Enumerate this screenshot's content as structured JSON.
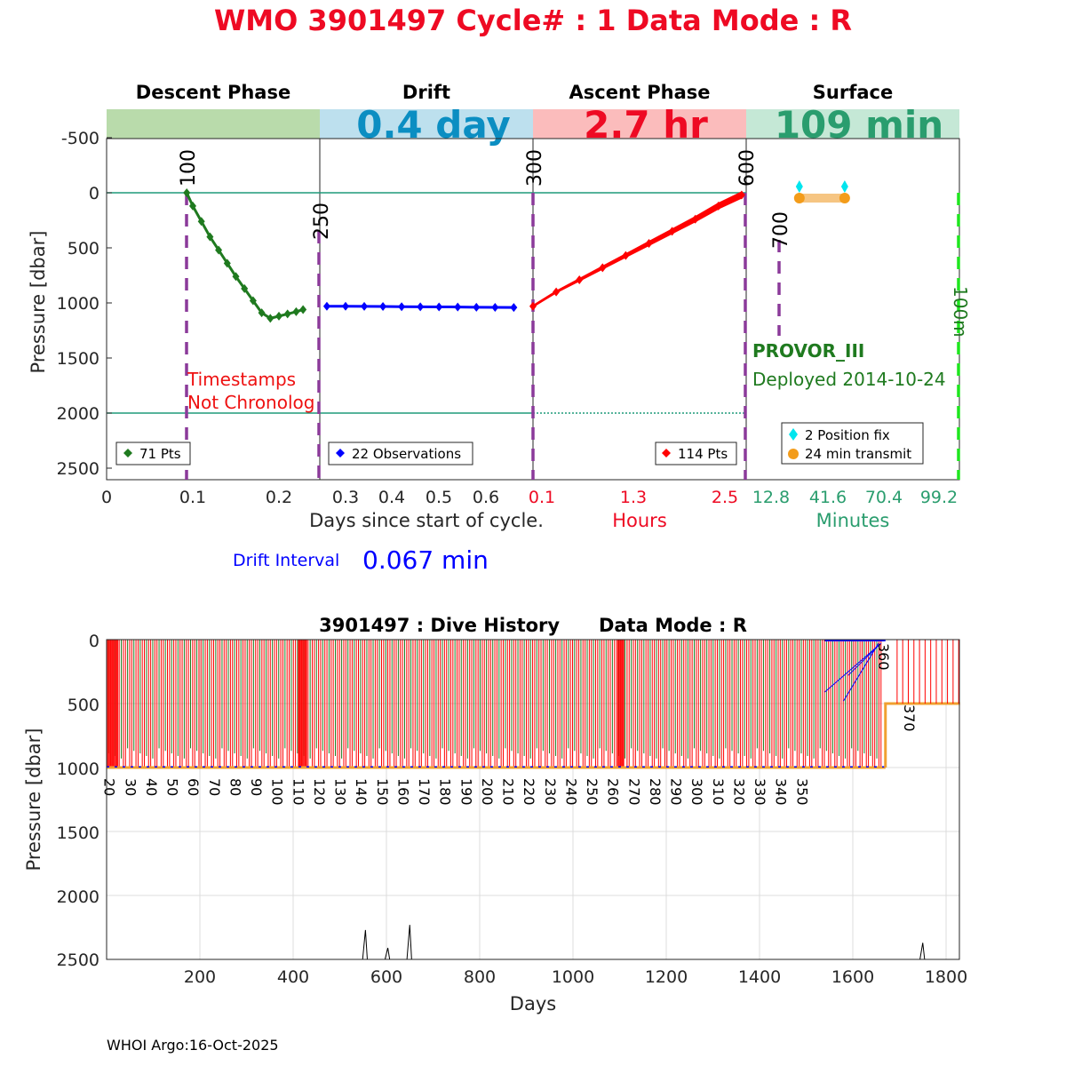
{
  "title": "WMO 3901497   Cycle# : 1   Data Mode : R",
  "phases": [
    {
      "label": "Descent Phase",
      "value": "",
      "color": "#b9dbab",
      "value_color": "#000000"
    },
    {
      "label": "Drift",
      "value": "0.4 day",
      "color": "#bde0ee",
      "value_color": "#0b8ec2"
    },
    {
      "label": "Ascent Phase",
      "value": "2.7 hr",
      "color": "#fbbcbc",
      "value_color": "#ee0a23"
    },
    {
      "label": "Surface",
      "value": "109 min",
      "color": "#c5e8d6",
      "value_color": "#2a9d6e"
    }
  ],
  "top_axes": {
    "ylabel": "Pressure [dbar]",
    "yticks": [
      "-500",
      "0",
      "500",
      "1000",
      "1500",
      "2000",
      "2500"
    ],
    "descent_drift_xticks": [
      "0",
      "0.1",
      "0.2",
      "0.3",
      "0.4",
      "0.5",
      "0.6"
    ],
    "xlabel_days": "Days since start of cycle.",
    "ascent_xticks": [
      "0.1",
      "1.3",
      "2.5"
    ],
    "xlabel_hours": "Hours",
    "surface_xticks": [
      "12.8",
      "41.6",
      "70.4",
      "99.2"
    ],
    "xlabel_minutes": "Minutes",
    "pump_labels": [
      "100",
      "250",
      "300",
      "600",
      "700",
      "100m"
    ],
    "warning_line1": "Timestamps",
    "warning_line2": "Not Chronolog",
    "float_type": "PROVOR_III",
    "deployed": "Deployed 2014-10-24",
    "drift_interval_label": "Drift Interval",
    "drift_interval_value": "0.067 min",
    "legends": {
      "descent": "71 Pts",
      "drift": "22 Observations",
      "ascent": "114 Pts",
      "surface_fix": "2 Position fix",
      "surface_transmit": "24 min transmit"
    }
  },
  "bottom_axes": {
    "title": "3901497 : Dive History      Data Mode : R",
    "ylabel": "Pressure [dbar]",
    "xlabel": "Days",
    "yticks": [
      "0",
      "500",
      "1000",
      "1500",
      "2000",
      "2500"
    ],
    "xticks": [
      "200",
      "400",
      "600",
      "800",
      "1000",
      "1200",
      "1400",
      "1600",
      "1800"
    ],
    "cycle_labels": [
      "20",
      "30",
      "40",
      "50",
      "60",
      "70",
      "80",
      "90",
      "100",
      "110",
      "120",
      "130",
      "140",
      "150",
      "160",
      "170",
      "180",
      "190",
      "200",
      "210",
      "220",
      "230",
      "240",
      "250",
      "260",
      "270",
      "280",
      "290",
      "300",
      "310",
      "320",
      "330",
      "340",
      "350",
      "360",
      "370"
    ]
  },
  "footer": "WHOI Argo:16-Oct-2025",
  "chart_data": [
    {
      "type": "line",
      "title": "Descent Phase",
      "xlabel": "Days since start of cycle.",
      "ylabel": "Pressure [dbar]",
      "xlim": [
        0,
        0.25
      ],
      "ylim": [
        2600,
        -750
      ],
      "series": [
        {
          "name": "71 Pts",
          "color": "#1f7a1f",
          "x": [
            0.093,
            0.1,
            0.11,
            0.12,
            0.13,
            0.14,
            0.15,
            0.16,
            0.17,
            0.18,
            0.19,
            0.2,
            0.21,
            0.22,
            0.228
          ],
          "y": [
            0,
            120,
            260,
            400,
            520,
            640,
            760,
            870,
            980,
            1090,
            1140,
            1120,
            1100,
            1080,
            1060
          ]
        }
      ]
    },
    {
      "type": "line",
      "title": "Drift",
      "xlabel": "Days since start of cycle.",
      "ylabel": "Pressure [dbar]",
      "xlim": [
        0.25,
        0.7
      ],
      "ylim": [
        2600,
        -750
      ],
      "series": [
        {
          "name": "22 Observations",
          "color": "#0000ff",
          "x": [
            0.26,
            0.3,
            0.34,
            0.38,
            0.42,
            0.46,
            0.5,
            0.54,
            0.58,
            0.62,
            0.66
          ],
          "y": [
            1030,
            1030,
            1031,
            1032,
            1034,
            1035,
            1036,
            1037,
            1039,
            1040,
            1041
          ]
        }
      ]
    },
    {
      "type": "line",
      "title": "Ascent Phase",
      "xlabel": "Hours",
      "ylabel": "Pressure [dbar]",
      "xlim": [
        0,
        2.7
      ],
      "ylim": [
        2600,
        -750
      ],
      "series": [
        {
          "name": "114 Pts",
          "color": "#ff0000",
          "x": [
            0.0,
            0.3,
            0.6,
            0.9,
            1.2,
            1.5,
            1.8,
            2.1,
            2.4,
            2.7
          ],
          "y": [
            1030,
            900,
            790,
            680,
            570,
            460,
            350,
            240,
            120,
            20
          ]
        }
      ]
    },
    {
      "type": "scatter",
      "title": "Surface",
      "xlabel": "Minutes",
      "ylabel": "Pressure [dbar]",
      "xlim": [
        0,
        109
      ],
      "ylim": [
        2600,
        -750
      ],
      "series": [
        {
          "name": "2 Position fix",
          "color": "#00e5ee",
          "x": [
            27.2,
            50.4
          ],
          "y": [
            45,
            45
          ]
        },
        {
          "name": "24 min transmit",
          "color": "#f39c1a",
          "x": [
            27.2,
            50.4
          ],
          "y": [
            55,
            55
          ]
        }
      ]
    },
    {
      "type": "bar",
      "title": "3901497 : Dive History      Data Mode : R",
      "xlabel": "Days",
      "ylabel": "Pressure [dbar]",
      "xlim": [
        0,
        1830
      ],
      "ylim": [
        2500,
        0
      ],
      "dive_start_day": 0,
      "dive_step_days": 4.5,
      "dive_count": 370,
      "profile_depth": 1000,
      "park_depth": 1000,
      "cycle_label_start": 20,
      "cycle_label_step": 10,
      "colors": {
        "descent": "#ff0000",
        "drift": "#0000ff",
        "ascent": "#1f7a1f",
        "transmit": "#f0a030"
      }
    }
  ]
}
